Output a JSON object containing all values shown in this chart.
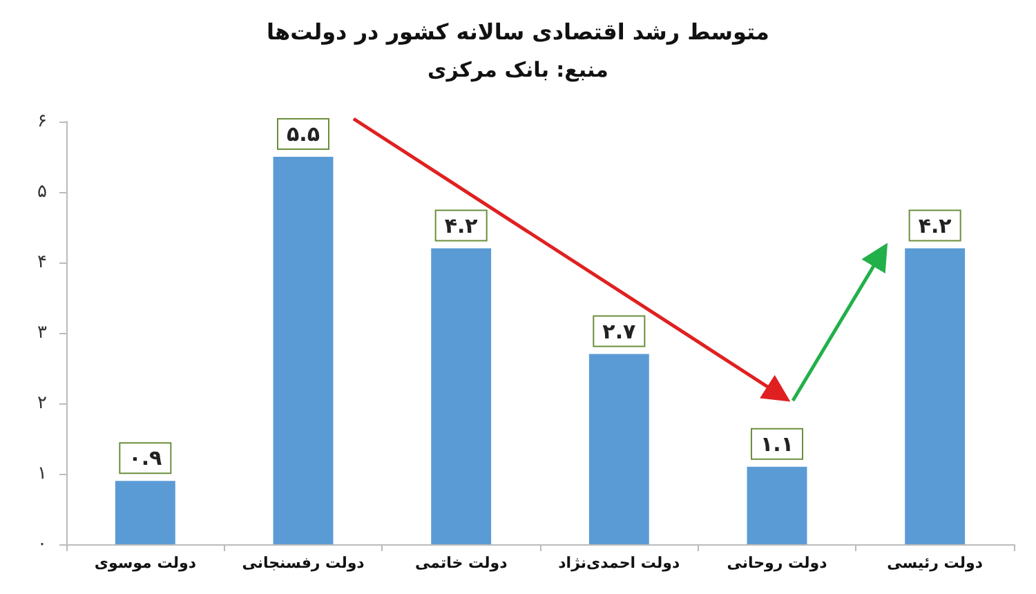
{
  "chart_data": {
    "type": "bar",
    "title": "متوسط رشد اقتصادی سالانه کشور در دولت‌ها",
    "subtitle": "منبع: بانک مرکزی",
    "categories": [
      "دولت موسوی",
      "دولت رفسنجانی",
      "دولت خاتمی",
      "دولت احمدی‌نژاد",
      "دولت روحانی",
      "دولت رئیسی"
    ],
    "values": [
      0.9,
      5.5,
      4.2,
      2.7,
      1.1,
      4.2
    ],
    "value_labels": [
      "۰.۹",
      "۵.۵",
      "۴.۲",
      "۲.۷",
      "۱.۱",
      "۴.۲"
    ],
    "color": "#5b9bd5",
    "ylim": [
      0,
      6
    ],
    "yticks": [
      {
        "value": 0,
        "label": "۰"
      },
      {
        "value": 1,
        "label": "۱"
      },
      {
        "value": 2,
        "label": "۲"
      },
      {
        "value": 3,
        "label": "۳"
      },
      {
        "value": 4,
        "label": "۴"
      },
      {
        "value": 5,
        "label": "۵"
      },
      {
        "value": 6,
        "label": "۶"
      }
    ],
    "grid": false
  }
}
